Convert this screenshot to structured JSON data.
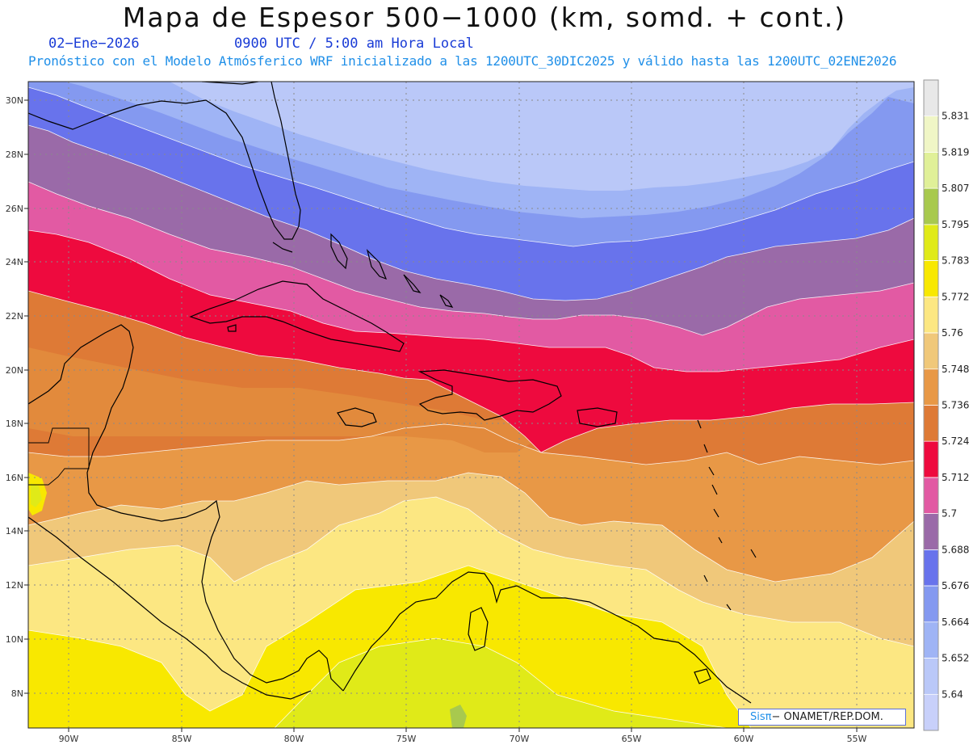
{
  "header": {
    "title": "Mapa de Espesor 500−1000 (km, somd. + cont.)",
    "date": "02−Ene−2026",
    "time": "0900 UTC / 5:00 am Hora Local",
    "description": "Pronóstico con el Modelo Atmósferico WRF inicializado a las 1200UTC_30DIC2025 y válido hasta las  1200UTC_02ENE2026"
  },
  "axes": {
    "lat_labels": [
      "30N",
      "28N",
      "26N",
      "24N",
      "22N",
      "20N",
      "18N",
      "16N",
      "14N",
      "12N",
      "10N",
      "8N"
    ],
    "lon_labels": [
      "90W",
      "85W",
      "80W",
      "75W",
      "70W",
      "65W",
      "60W",
      "55W"
    ]
  },
  "legend": {
    "levels": [
      "5.64",
      "5.652",
      "5.664",
      "5.676",
      "5.688",
      "5.7",
      "5.712",
      "5.724",
      "5.736",
      "5.748",
      "5.76",
      "5.772",
      "5.783",
      "5.795",
      "5.807",
      "5.819",
      "5.831"
    ],
    "colors": [
      "#bac8f8",
      "#9fb4f5",
      "#8499f0",
      "#6873ec",
      "#9a6aa8",
      "#e25aa3",
      "#ee0a3e",
      "#de7a36",
      "#e89846",
      "#f0c87a",
      "#fce782",
      "#f8e800",
      "#e0ea18",
      "#a8c94e",
      "#e0f098",
      "#f0f6c6",
      "#e8e8e8",
      "#c8d0fa"
    ]
  },
  "credit": {
    "brand": "Sisπ",
    "org": "− ONAMET/REP.DOM."
  }
}
